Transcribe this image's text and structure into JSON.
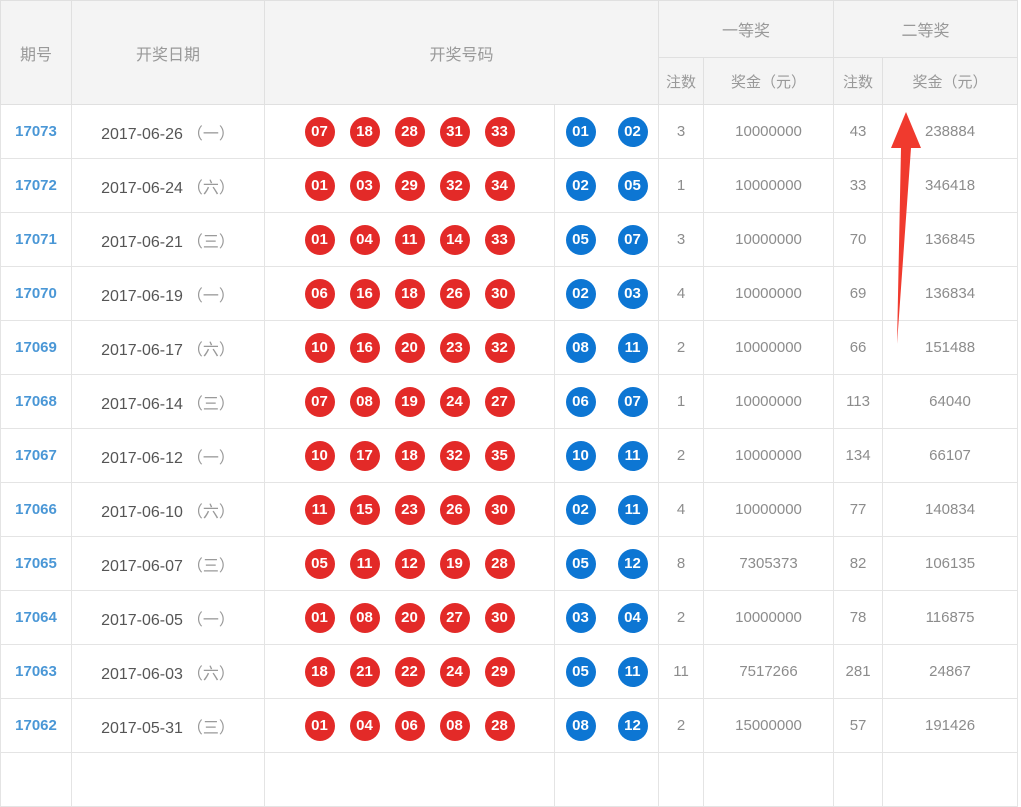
{
  "table": {
    "headers": {
      "issue": "期号",
      "date": "开奖日期",
      "numbers": "开奖号码",
      "first_prize": "一等奖",
      "second_prize": "二等奖",
      "bets": "注数",
      "amount": "奖金（元）"
    },
    "rows": [
      {
        "issue": "17073",
        "date": "2017-06-26",
        "weekday": "（一）",
        "red": [
          "07",
          "18",
          "28",
          "31",
          "33"
        ],
        "blue": [
          "01",
          "02"
        ],
        "p1_bets": "3",
        "p1_amount": "10000000",
        "p2_bets": "43",
        "p2_amount": "238884"
      },
      {
        "issue": "17072",
        "date": "2017-06-24",
        "weekday": "（六）",
        "red": [
          "01",
          "03",
          "29",
          "32",
          "34"
        ],
        "blue": [
          "02",
          "05"
        ],
        "p1_bets": "1",
        "p1_amount": "10000000",
        "p2_bets": "33",
        "p2_amount": "346418"
      },
      {
        "issue": "17071",
        "date": "2017-06-21",
        "weekday": "（三）",
        "red": [
          "01",
          "04",
          "11",
          "14",
          "33"
        ],
        "blue": [
          "05",
          "07"
        ],
        "p1_bets": "3",
        "p1_amount": "10000000",
        "p2_bets": "70",
        "p2_amount": "136845"
      },
      {
        "issue": "17070",
        "date": "2017-06-19",
        "weekday": "（一）",
        "red": [
          "06",
          "16",
          "18",
          "26",
          "30"
        ],
        "blue": [
          "02",
          "03"
        ],
        "p1_bets": "4",
        "p1_amount": "10000000",
        "p2_bets": "69",
        "p2_amount": "136834"
      },
      {
        "issue": "17069",
        "date": "2017-06-17",
        "weekday": "（六）",
        "red": [
          "10",
          "16",
          "20",
          "23",
          "32"
        ],
        "blue": [
          "08",
          "11"
        ],
        "p1_bets": "2",
        "p1_amount": "10000000",
        "p2_bets": "66",
        "p2_amount": "151488"
      },
      {
        "issue": "17068",
        "date": "2017-06-14",
        "weekday": "（三）",
        "red": [
          "07",
          "08",
          "19",
          "24",
          "27"
        ],
        "blue": [
          "06",
          "07"
        ],
        "p1_bets": "1",
        "p1_amount": "10000000",
        "p2_bets": "113",
        "p2_amount": "64040"
      },
      {
        "issue": "17067",
        "date": "2017-06-12",
        "weekday": "（一）",
        "red": [
          "10",
          "17",
          "18",
          "32",
          "35"
        ],
        "blue": [
          "10",
          "11"
        ],
        "p1_bets": "2",
        "p1_amount": "10000000",
        "p2_bets": "134",
        "p2_amount": "66107"
      },
      {
        "issue": "17066",
        "date": "2017-06-10",
        "weekday": "（六）",
        "red": [
          "11",
          "15",
          "23",
          "26",
          "30"
        ],
        "blue": [
          "02",
          "11"
        ],
        "p1_bets": "4",
        "p1_amount": "10000000",
        "p2_bets": "77",
        "p2_amount": "140834"
      },
      {
        "issue": "17065",
        "date": "2017-06-07",
        "weekday": "（三）",
        "red": [
          "05",
          "11",
          "12",
          "19",
          "28"
        ],
        "blue": [
          "05",
          "12"
        ],
        "p1_bets": "8",
        "p1_amount": "7305373",
        "p2_bets": "82",
        "p2_amount": "106135"
      },
      {
        "issue": "17064",
        "date": "2017-06-05",
        "weekday": "（一）",
        "red": [
          "01",
          "08",
          "20",
          "27",
          "30"
        ],
        "blue": [
          "03",
          "04"
        ],
        "p1_bets": "2",
        "p1_amount": "10000000",
        "p2_bets": "78",
        "p2_amount": "116875"
      },
      {
        "issue": "17063",
        "date": "2017-06-03",
        "weekday": "（六）",
        "red": [
          "18",
          "21",
          "22",
          "24",
          "29"
        ],
        "blue": [
          "05",
          "11"
        ],
        "p1_bets": "11",
        "p1_amount": "7517266",
        "p2_bets": "281",
        "p2_amount": "24867"
      },
      {
        "issue": "17062",
        "date": "2017-05-31",
        "weekday": "（三）",
        "red": [
          "01",
          "04",
          "06",
          "08",
          "28"
        ],
        "blue": [
          "08",
          "12"
        ],
        "p1_bets": "2",
        "p1_amount": "15000000",
        "p2_bets": "57",
        "p2_amount": "191426"
      }
    ]
  },
  "colors": {
    "red_ball": "#e32a28",
    "blue_ball": "#0d76d3",
    "issue_link": "#4a97d6",
    "header_bg": "#f4f4f4",
    "arrow_red": "#f03a2e"
  },
  "annotation": {
    "arrow": "red-up-arrow"
  }
}
